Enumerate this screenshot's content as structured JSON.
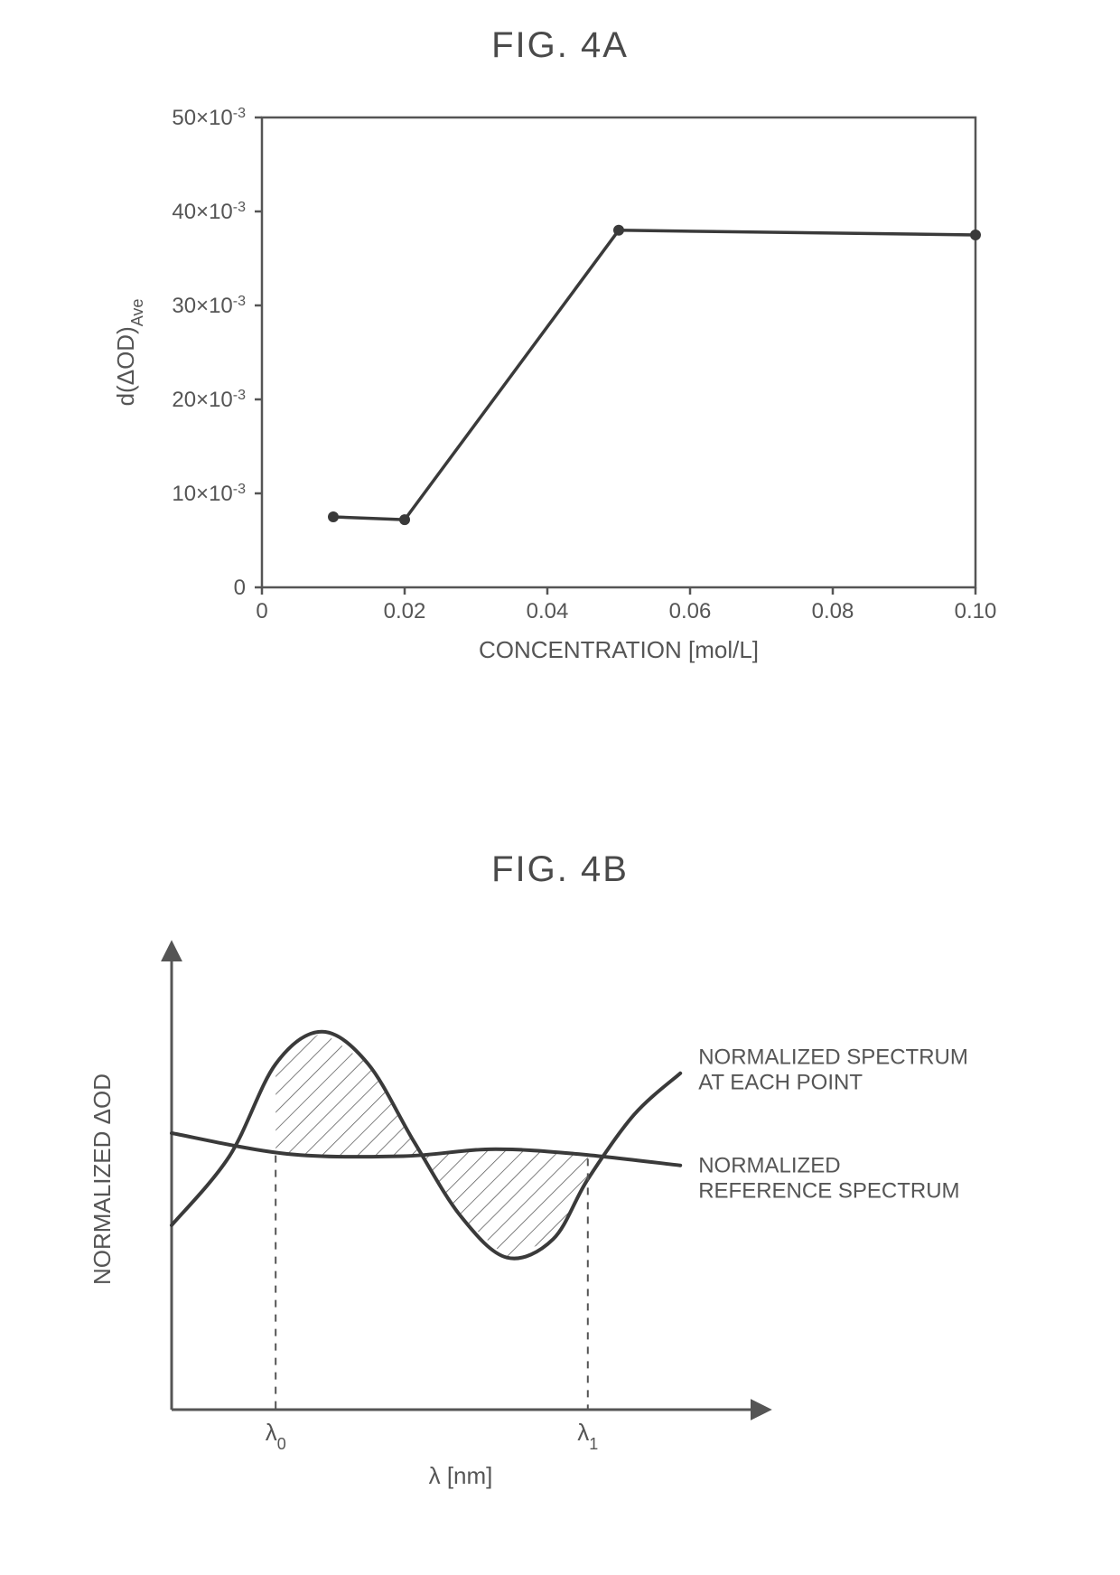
{
  "figA": {
    "title": "FIG. 4A",
    "type": "line",
    "xlabel": "CONCENTRATION [mol/L]",
    "ylabel_html": "d(ΔOD)<tspan baseline-shift=\"sub\" font-size=\"16\">Ave</tspan>",
    "xlim": [
      0,
      0.1
    ],
    "ylim": [
      0,
      50
    ],
    "xticks": [
      0,
      0.02,
      0.04,
      0.06,
      0.08,
      0.1
    ],
    "xtick_labels": [
      "0",
      "0.02",
      "0.04",
      "0.06",
      "0.08",
      "0.10"
    ],
    "yticks": [
      0,
      10,
      20,
      30,
      40,
      50
    ],
    "ytick_labels": [
      "0",
      "10×10⁻³",
      "20×10⁻³",
      "30×10⁻³",
      "40×10⁻³",
      "50×10⁻³"
    ],
    "y_tick_suffix_exponent": -3,
    "x_values": [
      0.01,
      0.02,
      0.05,
      0.1
    ],
    "y_values": [
      7.5,
      7.2,
      38.0,
      37.5
    ],
    "line_color": "#3a3a3a",
    "line_width": 3.5,
    "marker_color": "#3a3a3a",
    "marker_radius": 6,
    "axis_color": "#555555",
    "axis_width": 2.5,
    "tick_length": 8,
    "background_color": "#ffffff",
    "label_fontsize": 26,
    "tick_fontsize": 24,
    "title_fontsize": 40
  },
  "figB": {
    "title": "FIG. 4B",
    "type": "schematic-line",
    "xlabel": "λ [nm]",
    "ylabel": "NORMALIZED ΔOD",
    "legend": {
      "curve1": "NORMALIZED SPECTRUM\nAT EACH POINT",
      "curve1_line1": "NORMALIZED SPECTRUM",
      "curve1_line2": "AT EACH POINT",
      "curve2": "NORMALIZED\nREFERENCE SPECTRUM",
      "curve2_line1": "NORMALIZED",
      "curve2_line2": "REFERENCE SPECTRUM"
    },
    "x_markers": [
      "λ₀",
      "λ₁"
    ],
    "x_marker_label_0": "λ₀",
    "x_marker_label_1": "λ₁",
    "axis_color": "#555555",
    "axis_width": 3,
    "curve_color": "#3a3a3a",
    "curve_width": 4,
    "hatch_color": "#555555",
    "hatch_width": 1.5,
    "dash_color": "#555555",
    "label_fontsize": 26,
    "tick_fontsize": 26,
    "title_fontsize": 40,
    "background_color": "#ffffff",
    "x_marker_positions": [
      0.18,
      0.72
    ],
    "reference_baseline": 0.55,
    "reference_points": [
      [
        0.0,
        0.6
      ],
      [
        0.2,
        0.555
      ],
      [
        0.4,
        0.55
      ],
      [
        0.55,
        0.565
      ],
      [
        0.7,
        0.555
      ],
      [
        0.88,
        0.53
      ]
    ],
    "curve_points": [
      [
        0.0,
        0.4
      ],
      [
        0.1,
        0.55
      ],
      [
        0.18,
        0.75
      ],
      [
        0.26,
        0.82
      ],
      [
        0.34,
        0.75
      ],
      [
        0.42,
        0.58
      ],
      [
        0.5,
        0.42
      ],
      [
        0.58,
        0.33
      ],
      [
        0.66,
        0.37
      ],
      [
        0.72,
        0.5
      ],
      [
        0.8,
        0.64
      ],
      [
        0.88,
        0.73
      ]
    ]
  }
}
